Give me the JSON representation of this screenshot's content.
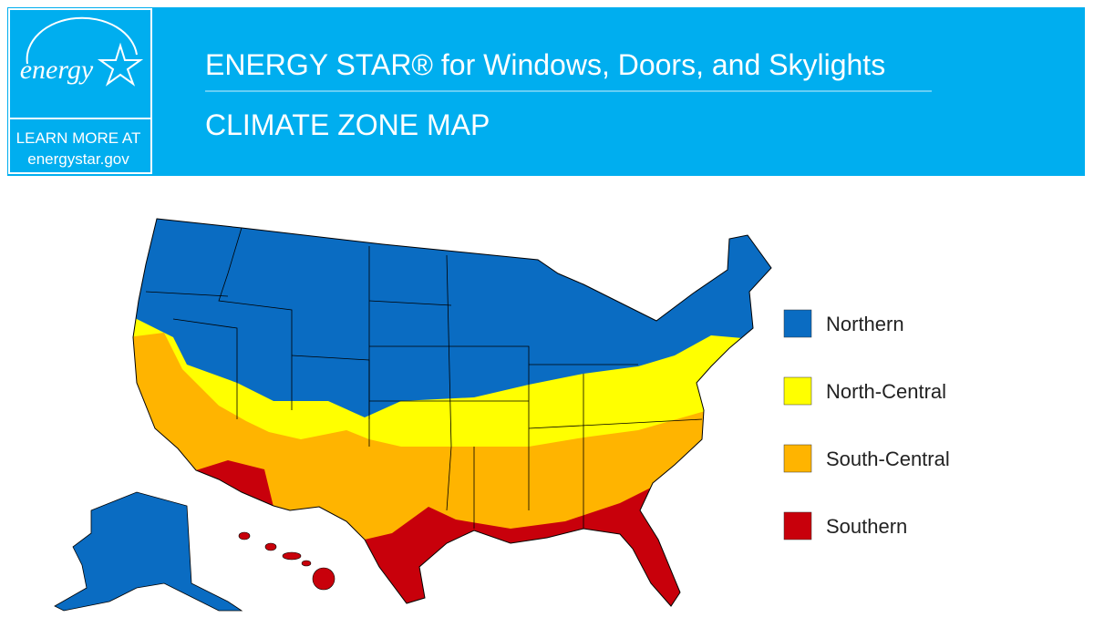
{
  "header": {
    "logo": {
      "wordmark": "energy",
      "line1": "LEARN MORE AT",
      "line2": "energystar.gov"
    },
    "title": "ENERGY STAR® for Windows, Doors, and Skylights",
    "subtitle": "CLIMATE ZONE MAP"
  },
  "legend": [
    {
      "label": "Northern",
      "color": "#0a6cc2"
    },
    {
      "label": "North-Central",
      "color": "#ffff00"
    },
    {
      "label": "South-Central",
      "color": "#ffb400"
    },
    {
      "label": "Southern",
      "color": "#c8000b"
    }
  ]
}
